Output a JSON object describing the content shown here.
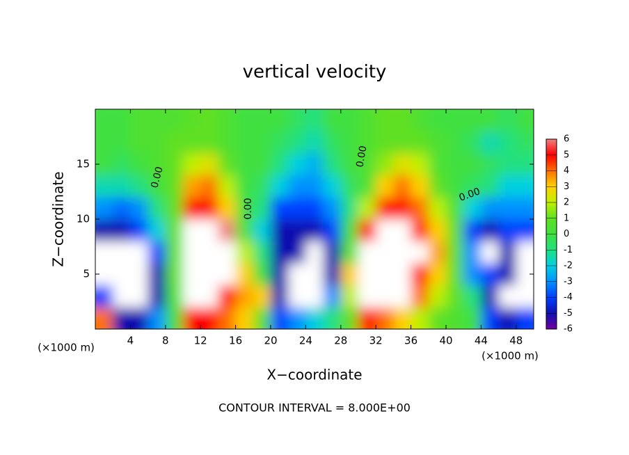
{
  "chart_data": {
    "type": "contour",
    "title": "vertical velocity",
    "x_label": "X−coordinate",
    "y_label": "Z−coordinate",
    "x_unit_labels": [
      "(×1000 m)",
      "(×1000 m)"
    ],
    "footnote": "CONTOUR INTERVAL = 8.000E+00",
    "contour_labels": [
      "0.00",
      "0.00",
      "0.00",
      "0.00"
    ],
    "xlim": [
      0,
      50
    ],
    "xticks": [
      4,
      8,
      12,
      16,
      20,
      24,
      28,
      32,
      36,
      40,
      44,
      48
    ],
    "ylim": [
      0,
      20
    ],
    "yticks": [
      5,
      10,
      15
    ],
    "x": [
      1,
      3,
      5,
      7,
      9,
      11,
      13,
      15,
      17,
      19,
      21,
      23,
      25,
      27,
      29,
      31,
      33,
      35,
      37,
      39,
      41,
      43,
      45,
      47,
      49
    ],
    "y": [
      1,
      3,
      5,
      7,
      9,
      11,
      13,
      15,
      17,
      19
    ],
    "values": [
      [
        4,
        -5,
        -5,
        -3,
        0,
        5,
        5,
        4,
        3,
        1,
        -4,
        -3,
        -2,
        -1,
        1,
        5,
        4,
        3,
        2,
        1,
        0.5,
        0,
        -4,
        -5,
        -4
      ],
      [
        -4,
        8,
        8,
        -5,
        0.5,
        8,
        8,
        5,
        3.5,
        3,
        -5,
        8,
        8,
        -3,
        2,
        8,
        8,
        8,
        4,
        2,
        1,
        -1,
        -5,
        8,
        8
      ],
      [
        8,
        8,
        8,
        -5,
        1,
        8,
        8,
        8,
        3,
        0,
        -5,
        8,
        8,
        -5,
        3,
        8,
        8,
        8,
        5,
        3,
        1,
        -3,
        -4,
        -5,
        8
      ],
      [
        8,
        8,
        8,
        -4,
        1,
        8,
        8,
        8,
        2,
        -1,
        -5,
        -5,
        8,
        -5,
        1,
        8,
        8,
        8,
        8,
        3.5,
        1,
        -3,
        8,
        -5,
        8
      ],
      [
        -5,
        -5,
        -4,
        -2,
        1,
        8,
        8,
        6,
        0.5,
        -2,
        -5,
        -5,
        -5,
        -4,
        0,
        5,
        8,
        8,
        5,
        3,
        1,
        -4,
        -5,
        -4,
        -4
      ],
      [
        -3,
        -3.5,
        -3,
        -1,
        1,
        5,
        5,
        3,
        0,
        -1,
        -4,
        -4,
        -4,
        -3,
        -1,
        2,
        5,
        5,
        4,
        2,
        0.5,
        -2,
        -3,
        -3,
        -3
      ],
      [
        -1.5,
        -1.5,
        -1,
        0,
        1,
        3.5,
        4,
        2,
        0,
        -0.5,
        -2,
        -3,
        -3,
        -2,
        -0.5,
        0.5,
        3,
        4,
        3,
        1,
        0,
        -0.5,
        -1,
        -2,
        -2
      ],
      [
        0,
        -0.5,
        0,
        0.5,
        1,
        2,
        2.5,
        1,
        0,
        0,
        -1,
        -2,
        -2.5,
        -1,
        0,
        0.5,
        1.5,
        2.5,
        2,
        0.5,
        0,
        0,
        -0.5,
        -1,
        -1
      ],
      [
        0,
        0,
        0.5,
        0.5,
        1,
        1,
        1,
        0.5,
        0,
        0,
        -0.5,
        -1,
        -1.5,
        -0.5,
        0,
        0.5,
        1,
        1,
        1,
        0.5,
        0,
        -0.5,
        -1.5,
        -1,
        -0.5
      ],
      [
        0,
        0,
        0.5,
        0.5,
        0.5,
        0.8,
        1,
        0.5,
        0,
        0,
        0,
        -0.5,
        -1,
        0,
        0,
        0.5,
        1,
        1,
        0.5,
        0,
        0,
        0,
        0,
        -0.5,
        0
      ]
    ],
    "over_color": "#ffffff",
    "colorbar": {
      "levels": [
        -6,
        -5,
        -4,
        -3,
        -2,
        -1,
        0,
        1,
        2,
        3,
        4,
        5,
        6
      ],
      "colors": [
        "#7000a0",
        "#1010b0",
        "#0040ff",
        "#0090ff",
        "#00d0e0",
        "#20e080",
        "#40e040",
        "#60e020",
        "#c0f000",
        "#ffd000",
        "#ff7000",
        "#ff0000",
        "#f08080"
      ]
    }
  }
}
